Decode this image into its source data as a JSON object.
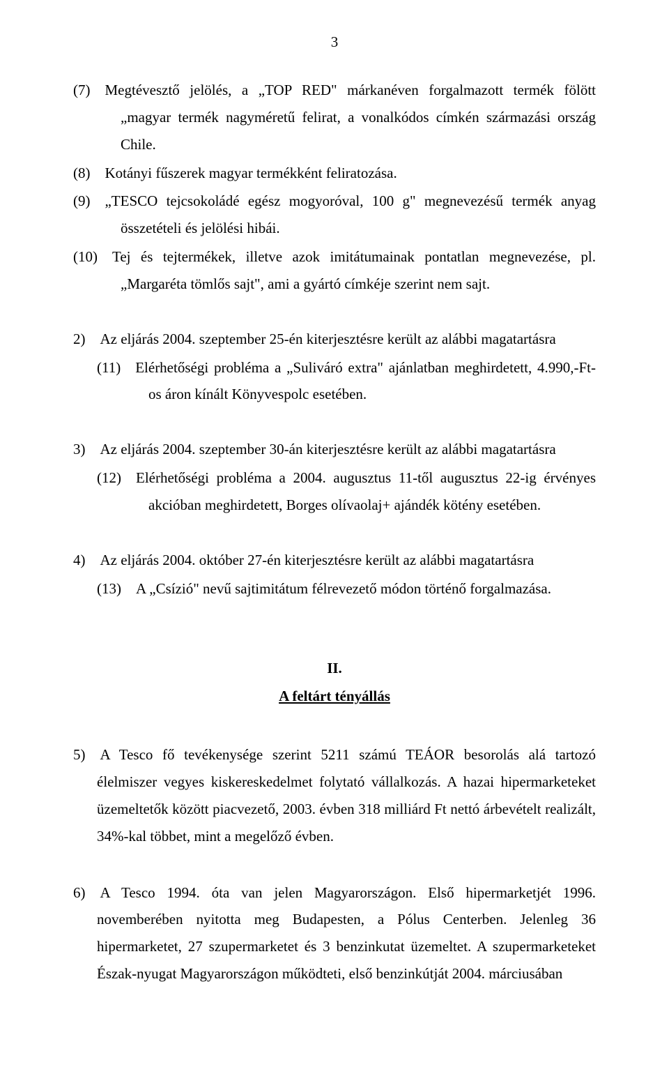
{
  "page": {
    "number": "3",
    "background_color": "#ffffff",
    "text_color": "#000000",
    "font_family": "Times New Roman",
    "font_size_pt": 16
  },
  "items": {
    "i7": "(7) Megtévesztő jelölés, a „TOP RED\" márkanéven forgalmazott termék fölött „magyar termék nagyméretű felirat, a vonalkódos címkén származási ország Chile.",
    "i8": "(8) Kotányi fűszerek magyar termékként feliratozása.",
    "i9": "(9) „TESCO tejcsokoládé egész mogyoróval, 100 g\" megnevezésű termék anyag összetételi és jelölési hibái.",
    "i10": "(10) Tej és tejtermékek, illetve azok imitátumainak pontatlan megnevezése, pl. „Margaréta tömlős sajt\", ami a gyártó címkéje szerint nem sajt.",
    "s2_head": "2) Az eljárás 2004. szeptember 25-én kiterjesztésre került az alábbi magatartásra",
    "s2_i11": "(11) Elérhetőségi probléma a „Suliváró extra\" ajánlatban meghirdetett, 4.990,-Ft-os áron kínált Könyvespolc esetében.",
    "s3_head": "3) Az eljárás 2004. szeptember 30-án kiterjesztésre került az alábbi magatartásra",
    "s3_i12": "(12) Elérhetőségi probléma a 2004. augusztus 11-től augusztus 22-ig érvényes akcióban meghirdetett, Borges olívaolaj+ ajándék kötény esetében.",
    "s4_head": "4) Az eljárás 2004. október 27-én kiterjesztésre került az alábbi magatartásra",
    "s4_i13": "(13) A „Csízió\" nevű sajtimitátum félrevezető módon történő forgalmazása.",
    "section2_roman": "II.",
    "section2_title": "A feltárt tényállás",
    "p5": "5) A Tesco fő tevékenysége szerint 5211 számú TEÁOR besorolás alá tartozó élelmiszer vegyes kiskereskedelmet folytató vállalkozás. A hazai hipermarketeket üzemeltetők között piacvezető, 2003. évben 318 milliárd Ft nettó árbevételt realizált, 34%-kal többet, mint a megelőző évben.",
    "p6": "6) A Tesco 1994. óta van jelen Magyarországon. Első hipermarketjét 1996. novemberében nyitotta meg Budapesten, a Pólus Centerben. Jelenleg 36 hipermarketet, 27 szupermarketet és 3 benzinkutat üzemeltet. A szupermarketeket Észak-nyugat Magyarországon működteti, első benzinkútját 2004. márciusában"
  }
}
